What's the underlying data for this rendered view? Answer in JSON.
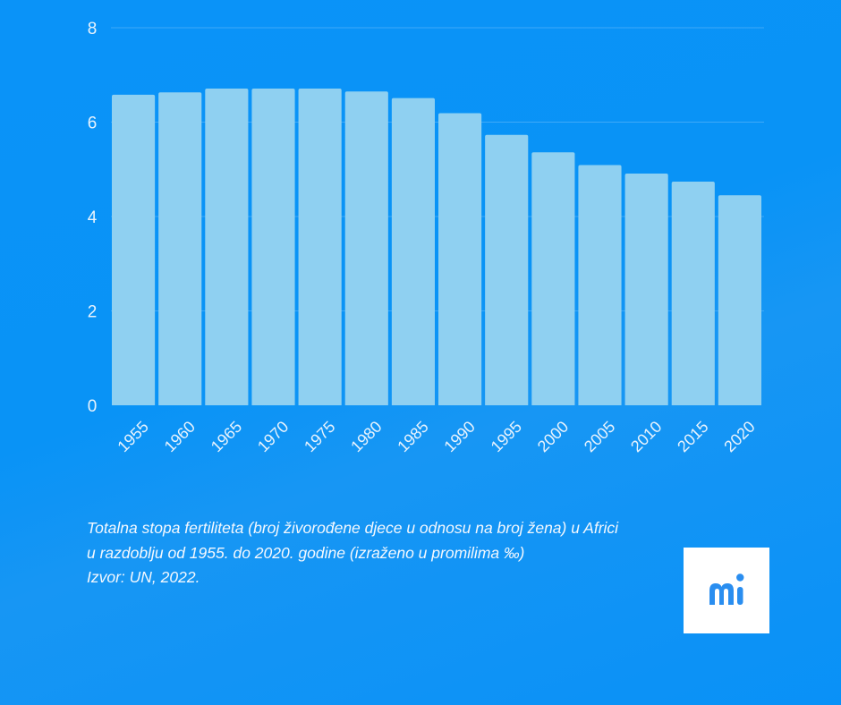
{
  "chart_data": {
    "type": "bar",
    "categories": [
      "1955",
      "1960",
      "1965",
      "1970",
      "1975",
      "1980",
      "1985",
      "1990",
      "1995",
      "2000",
      "2005",
      "2010",
      "2015",
      "2020"
    ],
    "values": [
      6.58,
      6.63,
      6.71,
      6.71,
      6.71,
      6.65,
      6.51,
      6.19,
      5.73,
      5.36,
      5.09,
      4.91,
      4.74,
      4.45
    ],
    "yticks": [
      "0",
      "2",
      "4",
      "6",
      "8"
    ],
    "ylim": [
      0,
      8
    ],
    "grid": true,
    "bar_color": "#8fd0f1",
    "grid_color": "#3ea9f8"
  },
  "caption": {
    "line1": "Totalna stopa fertiliteta (broj živorođene djece u odnosu na broj žena) u Africi",
    "line2": "u razdoblju od 1955. do 2020. godine (izraženo u promilima ‰)",
    "source": "Izvor: UN, 2022."
  },
  "logo": {
    "text": "mi",
    "color": "#2a8ef0"
  }
}
